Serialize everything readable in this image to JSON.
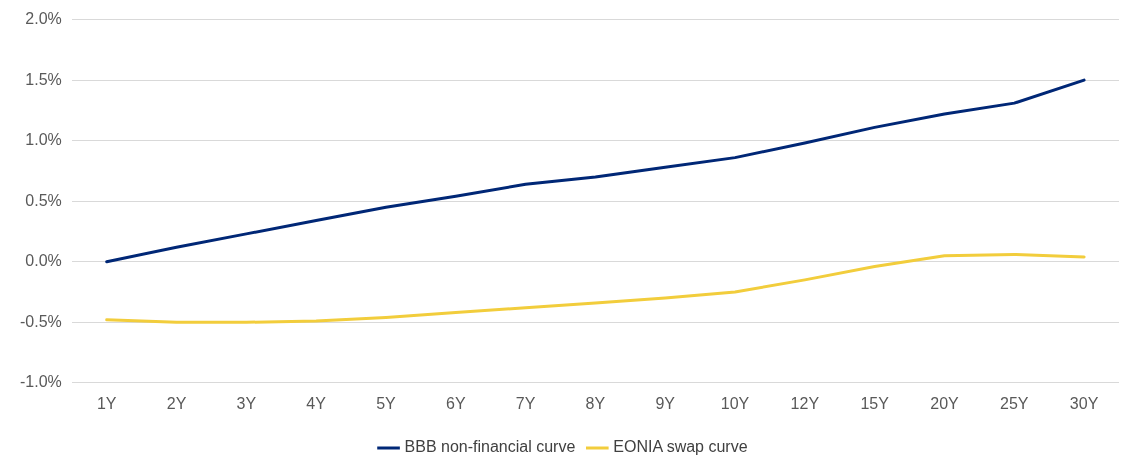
{
  "chart_data": {
    "type": "line",
    "categories": [
      "1Y",
      "2Y",
      "3Y",
      "4Y",
      "5Y",
      "6Y",
      "7Y",
      "8Y",
      "9Y",
      "10Y",
      "12Y",
      "15Y",
      "20Y",
      "25Y",
      "30Y"
    ],
    "series": [
      {
        "name": "BBB non-financial curve",
        "color": "#002776",
        "values": [
          0.0,
          0.12,
          0.23,
          0.34,
          0.45,
          0.54,
          0.64,
          0.7,
          0.78,
          0.86,
          0.98,
          1.11,
          1.22,
          1.31,
          1.5
        ]
      },
      {
        "name": "EONIA swap curve",
        "color": "#f2cd3c",
        "values": [
          -0.48,
          -0.5,
          -0.5,
          -0.49,
          -0.46,
          -0.42,
          -0.38,
          -0.34,
          -0.3,
          -0.25,
          -0.15,
          -0.04,
          0.05,
          0.06,
          0.04
        ]
      }
    ],
    "ylim": [
      -1.0,
      2.0
    ],
    "yticks": [
      {
        "value": -1.0,
        "label": "-1.0%"
      },
      {
        "value": -0.5,
        "label": "-0.5%"
      },
      {
        "value": 0,
        "label": "0.0%"
      },
      {
        "value": 0.5,
        "label": "0.5%"
      },
      {
        "value": 1.0,
        "label": "1.0%"
      },
      {
        "value": 1.5,
        "label": "1.5%"
      },
      {
        "value": 2.0,
        "label": "2.0%"
      }
    ],
    "grid": "y",
    "legend": "bottom",
    "marker": "none",
    "line_style": "solid"
  }
}
